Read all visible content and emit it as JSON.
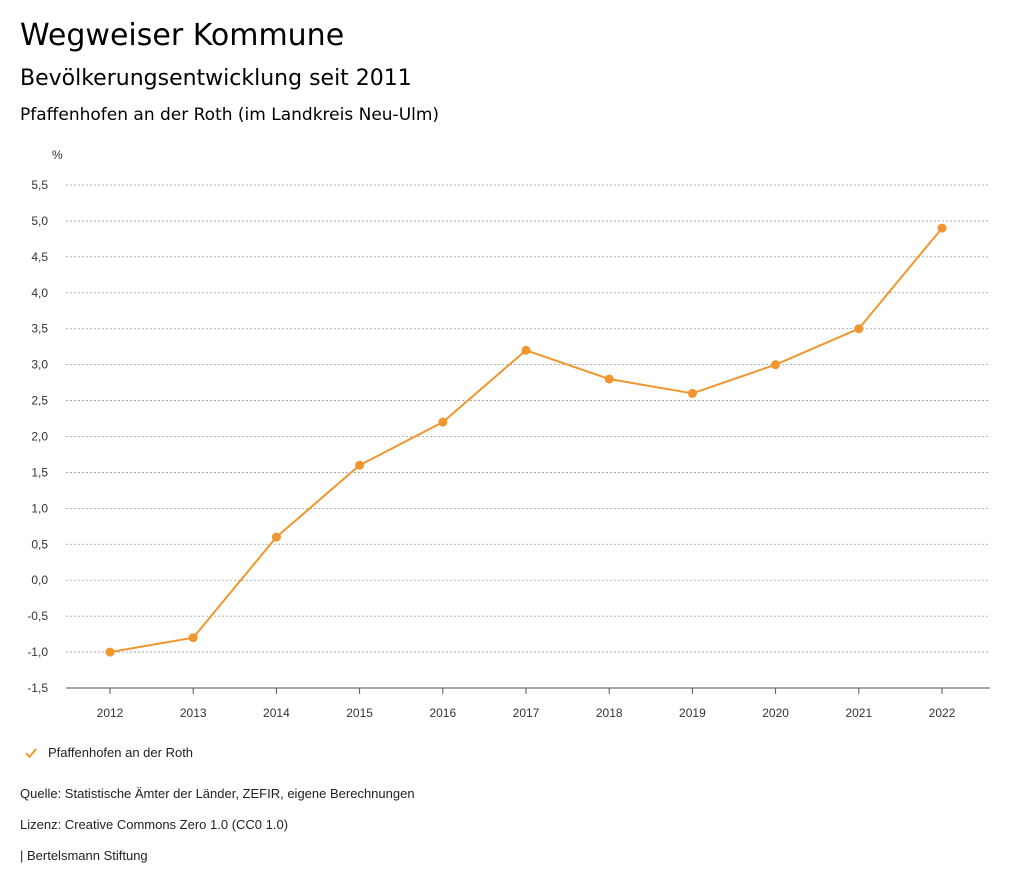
{
  "header": {
    "title": "Wegweiser Kommune",
    "subtitle": "Bevölkerungsentwicklung seit 2011",
    "region": "Pfaffenhofen an der Roth (im Landkreis Neu-Ulm)"
  },
  "chart_data": {
    "type": "line",
    "ylabel": "%",
    "ylim": [
      -1.5,
      5.5
    ],
    "yticks": [
      "5,5",
      "5,0",
      "4,5",
      "4,0",
      "3,5",
      "3,0",
      "2,5",
      "2,0",
      "1,5",
      "1,0",
      "0,5",
      "0,0",
      "-0,5",
      "-1,0",
      "-1,5"
    ],
    "grid": true,
    "legend_position": "bottom-left",
    "x": [
      "2012",
      "2013",
      "2014",
      "2015",
      "2016",
      "2017",
      "2018",
      "2019",
      "2020",
      "2021",
      "2022"
    ],
    "series": [
      {
        "name": "Pfaffenhofen an der Roth",
        "color": "#f0962e",
        "values": [
          -1.0,
          -0.8,
          0.6,
          1.6,
          2.2,
          3.2,
          2.8,
          2.6,
          3.0,
          3.5,
          4.9
        ]
      }
    ]
  },
  "legend": {
    "label": "Pfaffenhofen an der Roth",
    "icon": "check-icon"
  },
  "footer": {
    "source": "Quelle: Statistische Ämter der Länder, ZEFIR, eigene Berechnungen",
    "license": "Lizenz: Creative Commons Zero 1.0 (CC0 1.0)",
    "publisher": "| Bertelsmann Stiftung"
  }
}
